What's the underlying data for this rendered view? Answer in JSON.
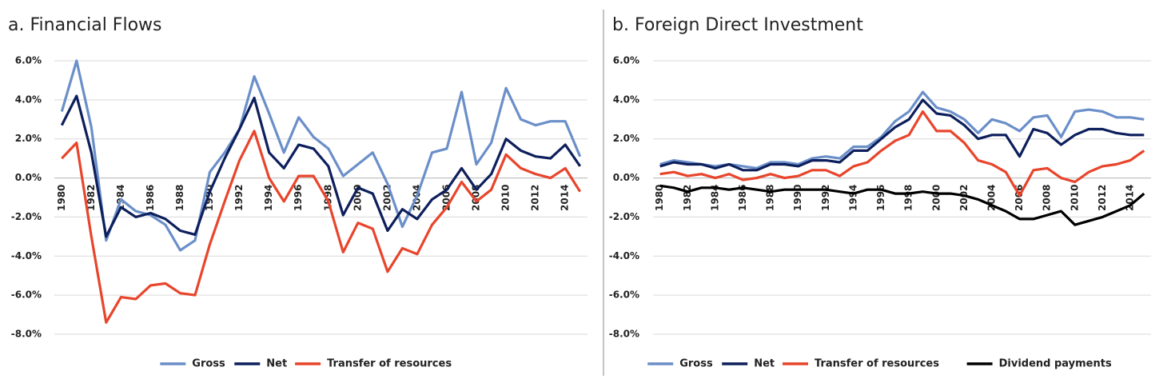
{
  "chart_data": [
    {
      "type": "line",
      "title": "a. Financial Flows",
      "categories": [
        "1980",
        null,
        "1982",
        null,
        "1984",
        null,
        "1986",
        null,
        "1988",
        null,
        "1990",
        null,
        "1992",
        null,
        "1994",
        null,
        "1996",
        null,
        "1998",
        null,
        "2000",
        null,
        "2002",
        null,
        "2004",
        null,
        "2006",
        null,
        "2008",
        null,
        "2010",
        null,
        "2012",
        null,
        "2014",
        null
      ],
      "ylim": [
        -8,
        6
      ],
      "yticks": [
        {
          "value": 6,
          "label": "6.0%"
        },
        {
          "value": 4,
          "label": "4.0%"
        },
        {
          "value": 2,
          "label": "2.0%"
        },
        {
          "value": 0,
          "label": "0.0%"
        },
        {
          "value": -2,
          "label": "-2.0%"
        },
        {
          "value": -4,
          "label": "-4.0%"
        },
        {
          "value": -6,
          "label": "-6.0%"
        },
        {
          "value": -8,
          "label": "-8.0%"
        }
      ],
      "grid": true,
      "series": [
        {
          "name": "Gross",
          "color": "#6b8fc9",
          "values": [
            3.4,
            6.0,
            2.6,
            -3.2,
            -1.1,
            -1.7,
            -1.9,
            -2.4,
            -3.7,
            -3.2,
            0.3,
            1.3,
            2.5,
            5.2,
            3.3,
            1.3,
            3.1,
            2.1,
            1.5,
            0.1,
            0.7,
            1.3,
            -0.3,
            -2.5,
            -0.9,
            1.3,
            1.5,
            4.4,
            0.7,
            1.8,
            4.6,
            3.0,
            2.7,
            2.9,
            2.9,
            1.1
          ]
        },
        {
          "name": "Net",
          "color": "#0d1f5c",
          "values": [
            2.7,
            4.2,
            1.3,
            -3.0,
            -1.5,
            -2.0,
            -1.8,
            -2.1,
            -2.7,
            -2.9,
            -0.7,
            1.0,
            2.5,
            4.1,
            1.3,
            0.5,
            1.7,
            1.5,
            0.6,
            -1.9,
            -0.5,
            -0.8,
            -2.7,
            -1.6,
            -2.1,
            -1.1,
            -0.6,
            0.5,
            -0.6,
            0.2,
            2.0,
            1.4,
            1.1,
            1.0,
            1.7,
            0.6
          ]
        },
        {
          "name": "Transfer of resources",
          "color": "#e8452c",
          "values": [
            1.0,
            1.8,
            -3.0,
            -7.4,
            -6.1,
            -6.2,
            -5.5,
            -5.4,
            -5.9,
            -6.0,
            -3.4,
            -1.2,
            0.9,
            2.4,
            0.0,
            -1.2,
            0.1,
            0.1,
            -1.2,
            -3.8,
            -2.3,
            -2.6,
            -4.8,
            -3.6,
            -3.9,
            -2.4,
            -1.5,
            -0.2,
            -1.2,
            -0.6,
            1.2,
            0.5,
            0.2,
            0.0,
            0.5,
            -0.7
          ]
        }
      ]
    },
    {
      "type": "line",
      "title": "b. Foreign Direct Investment",
      "categories": [
        "1980",
        null,
        "1982",
        null,
        "1984",
        null,
        "1986",
        null,
        "1988",
        null,
        "1990",
        null,
        "1992",
        null,
        "1994",
        null,
        "1996",
        null,
        "1998",
        null,
        "2000",
        null,
        "2002",
        null,
        "2004",
        null,
        "2006",
        null,
        "2008",
        null,
        "2010",
        null,
        "2012",
        null,
        "2014",
        null
      ],
      "ylim": [
        -8,
        6
      ],
      "yticks": [
        {
          "value": 6,
          "label": "6.0%"
        },
        {
          "value": 4,
          "label": "4.0%"
        },
        {
          "value": 2,
          "label": "2.0%"
        },
        {
          "value": 0,
          "label": "0.0%"
        },
        {
          "value": -2,
          "label": "-2.0%"
        },
        {
          "value": -4,
          "label": "-4.0%"
        },
        {
          "value": -6,
          "label": "-6.0%"
        },
        {
          "value": -8,
          "label": "-8.0%"
        }
      ],
      "grid": true,
      "series": [
        {
          "name": "Gross",
          "color": "#6b8fc9",
          "values": [
            0.7,
            0.9,
            0.8,
            0.7,
            0.6,
            0.7,
            0.6,
            0.5,
            0.8,
            0.8,
            0.7,
            1.0,
            1.1,
            1.0,
            1.6,
            1.6,
            2.1,
            2.9,
            3.4,
            4.4,
            3.6,
            3.4,
            3.0,
            2.3,
            3.0,
            2.8,
            2.4,
            3.1,
            3.2,
            2.1,
            3.4,
            3.5,
            3.4,
            3.1,
            3.1,
            3.0
          ]
        },
        {
          "name": "Net",
          "color": "#0d1f5c",
          "values": [
            0.6,
            0.8,
            0.7,
            0.7,
            0.5,
            0.7,
            0.4,
            0.4,
            0.7,
            0.7,
            0.6,
            0.9,
            0.9,
            0.8,
            1.4,
            1.4,
            2.0,
            2.6,
            3.0,
            4.0,
            3.3,
            3.2,
            2.7,
            2.0,
            2.2,
            2.2,
            1.1,
            2.5,
            2.3,
            1.7,
            2.2,
            2.5,
            2.5,
            2.3,
            2.2,
            2.2
          ]
        },
        {
          "name": "Transfer of resources",
          "color": "#e8452c",
          "values": [
            0.2,
            0.3,
            0.1,
            0.2,
            0.0,
            0.2,
            -0.1,
            0.0,
            0.2,
            0.0,
            0.1,
            0.4,
            0.4,
            0.1,
            0.6,
            0.8,
            1.4,
            1.9,
            2.2,
            3.4,
            2.4,
            2.4,
            1.8,
            0.9,
            0.7,
            0.3,
            -0.9,
            0.4,
            0.5,
            0.0,
            -0.2,
            0.3,
            0.6,
            0.7,
            0.9,
            1.4
          ]
        },
        {
          "name": "Dividend payments",
          "color": "#000000",
          "values": [
            -0.4,
            -0.5,
            -0.7,
            -0.5,
            -0.5,
            -0.6,
            -0.5,
            -0.6,
            -0.7,
            -0.6,
            -0.6,
            -0.6,
            -0.6,
            -0.7,
            -0.8,
            -0.6,
            -0.6,
            -0.8,
            -0.8,
            -0.7,
            -0.8,
            -0.8,
            -0.9,
            -1.1,
            -1.4,
            -1.7,
            -2.1,
            -2.1,
            -1.9,
            -1.7,
            -2.4,
            -2.2,
            -2.0,
            -1.7,
            -1.4,
            -0.8
          ]
        }
      ]
    }
  ]
}
